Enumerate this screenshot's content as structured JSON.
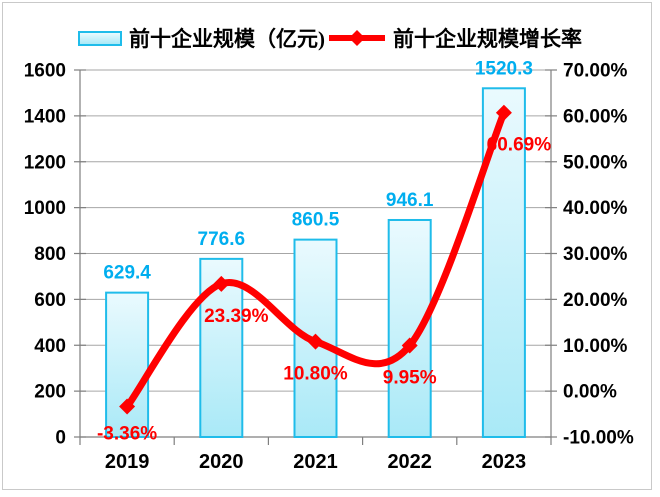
{
  "legend": {
    "bar_label": "前十企业规模（亿元)",
    "line_label": "前十企业规模增长率"
  },
  "chart_data": {
    "type": "combo-bar-line",
    "categories": [
      "2019",
      "2020",
      "2021",
      "2022",
      "2023"
    ],
    "series": [
      {
        "name": "前十企业规模（亿元)",
        "type": "bar",
        "axis": "left",
        "values": [
          629.4,
          776.6,
          860.5,
          946.1,
          1520.3
        ],
        "labels": [
          "629.4",
          "776.6",
          "860.5",
          "946.1",
          "1520.3"
        ]
      },
      {
        "name": "前十企业规模增长率",
        "type": "line",
        "axis": "right",
        "values": [
          -3.36,
          23.39,
          10.8,
          9.95,
          60.69
        ],
        "labels": [
          "-3.36%",
          "23.39%",
          "10.80%",
          "9.95%",
          "60.69%"
        ]
      }
    ],
    "left_axis": {
      "min": 0,
      "max": 1600,
      "step": 200,
      "ticks": [
        "0",
        "200",
        "400",
        "600",
        "800",
        "1000",
        "1200",
        "1400",
        "1600"
      ]
    },
    "right_axis": {
      "min": -10,
      "max": 70,
      "step": 10,
      "ticks": [
        "-10.00%",
        "0.00%",
        "10.00%",
        "20.00%",
        "30.00%",
        "40.00%",
        "50.00%",
        "60.00%",
        "70.00%"
      ]
    },
    "grid": true,
    "legend_position": "top",
    "colors": {
      "bar_fill_top": "#EAFAFE",
      "bar_fill_bottom": "#A9E9F7",
      "bar_border": "#1FBCEA",
      "bar_label": "#00AEEF",
      "line": "#FF0000",
      "grid": "#A6A6A6",
      "axis": "#7F7F7F",
      "frame": "#C9C9C9",
      "text": "#000000"
    }
  }
}
